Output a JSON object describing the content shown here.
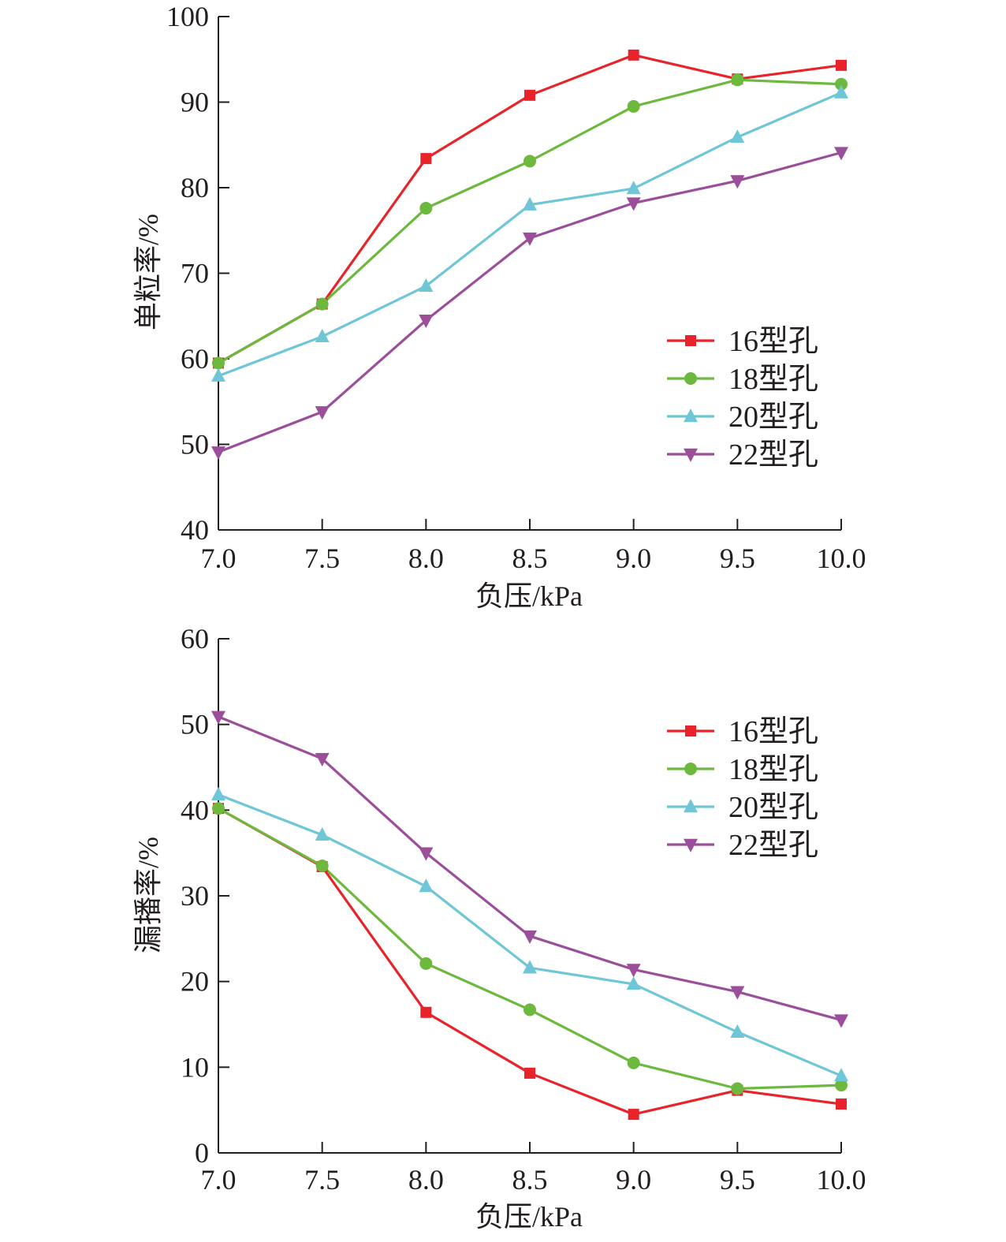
{
  "colors": {
    "16型孔": "#e8232a",
    "18型孔": "#6cb93e",
    "20型孔": "#6ec6d6",
    "22型孔": "#9b4f9a"
  },
  "chart_data": [
    {
      "type": "line",
      "title": "",
      "xlabel": "负压/kPa",
      "ylabel": "单粒率/%",
      "x": [
        7.0,
        7.5,
        8.0,
        8.5,
        9.0,
        9.5,
        10.0
      ],
      "x_tick_labels": [
        "7.0",
        "7.5",
        "8.0",
        "8.5",
        "9.0",
        "9.5",
        "10.0"
      ],
      "ylim": [
        40,
        100
      ],
      "y_ticks": [
        40,
        50,
        60,
        70,
        80,
        90,
        100
      ],
      "legend_position": "right",
      "grid": false,
      "series": [
        {
          "name": "16型孔",
          "marker": "square",
          "values": [
            59.5,
            66.4,
            83.4,
            90.8,
            95.5,
            92.7,
            94.3
          ]
        },
        {
          "name": "18型孔",
          "marker": "circle",
          "values": [
            59.5,
            66.4,
            77.6,
            83.1,
            89.5,
            92.6,
            92.1
          ]
        },
        {
          "name": "20型孔",
          "marker": "triangle-up",
          "values": [
            58.0,
            62.6,
            68.5,
            78.0,
            79.9,
            85.9,
            91.1
          ]
        },
        {
          "name": "22型孔",
          "marker": "triangle-down",
          "values": [
            49.1,
            53.8,
            64.5,
            74.1,
            78.2,
            80.8,
            84.1
          ]
        }
      ]
    },
    {
      "type": "line",
      "title": "",
      "xlabel": "负压/kPa",
      "ylabel": "漏播率/%",
      "x": [
        7.0,
        7.5,
        8.0,
        8.5,
        9.0,
        9.5,
        10.0
      ],
      "x_tick_labels": [
        "7.0",
        "7.5",
        "8.0",
        "8.5",
        "9.0",
        "9.5",
        "10.0"
      ],
      "ylim": [
        0,
        60
      ],
      "y_ticks": [
        0,
        10,
        20,
        30,
        40,
        50,
        60
      ],
      "legend_position": "top-right",
      "grid": false,
      "series": [
        {
          "name": "16型孔",
          "marker": "square",
          "values": [
            40.2,
            33.4,
            16.4,
            9.3,
            4.5,
            7.3,
            5.7
          ]
        },
        {
          "name": "18型孔",
          "marker": "circle",
          "values": [
            40.2,
            33.5,
            22.1,
            16.7,
            10.5,
            7.5,
            7.9
          ]
        },
        {
          "name": "20型孔",
          "marker": "triangle-up",
          "values": [
            41.8,
            37.1,
            31.1,
            21.6,
            19.7,
            14.1,
            9.0
          ]
        },
        {
          "name": "22型孔",
          "marker": "triangle-down",
          "values": [
            50.9,
            46.0,
            35.0,
            25.3,
            21.4,
            18.8,
            15.5
          ]
        }
      ]
    }
  ]
}
